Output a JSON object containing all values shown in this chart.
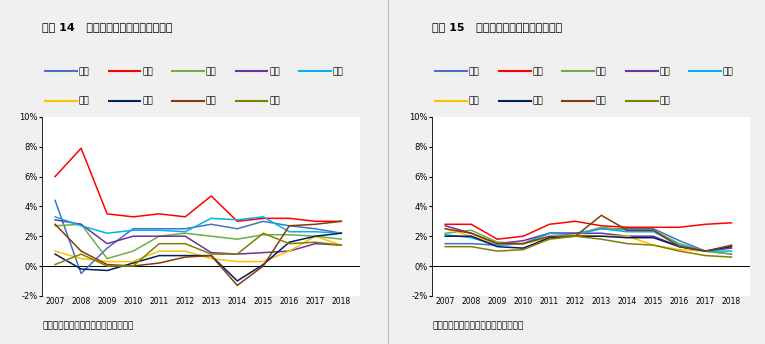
{
  "title1": "图表 14   部分上市银行零售资产利润率",
  "title2": "图表 15   部分上市银行对公资产利润率",
  "source": "资料来源：公司公告，万和证券研究所",
  "years": [
    2007,
    2008,
    2009,
    2010,
    2011,
    2012,
    2013,
    2014,
    2015,
    2016,
    2017,
    2018
  ],
  "legend_row1": [
    "农业",
    "工商",
    "中国",
    "交通",
    "建设"
  ],
  "legend_row2": [
    "中信",
    "平安",
    "招商",
    "光大"
  ],
  "chart1": {
    "农业": [
      0.044,
      -0.005,
      0.012,
      0.025,
      0.025,
      0.025,
      0.028,
      0.025,
      0.03,
      0.027,
      0.025,
      0.022
    ],
    "工商": [
      0.06,
      0.079,
      0.035,
      0.033,
      0.035,
      0.033,
      0.047,
      0.03,
      0.032,
      0.032,
      0.03,
      0.03
    ],
    "中国": [
      0.027,
      0.028,
      0.005,
      0.01,
      0.02,
      0.022,
      0.02,
      0.018,
      0.021,
      0.021,
      0.02,
      0.018
    ],
    "交通": [
      0.031,
      0.028,
      0.015,
      0.02,
      0.02,
      0.02,
      0.009,
      0.008,
      0.009,
      0.01,
      0.015,
      0.014
    ],
    "建设": [
      0.033,
      0.027,
      0.022,
      0.024,
      0.024,
      0.023,
      0.032,
      0.031,
      0.033,
      0.023,
      0.023,
      0.022
    ],
    "中信": [
      0.01,
      0.005,
      0.003,
      0.003,
      0.01,
      0.01,
      0.005,
      0.003,
      0.003,
      0.01,
      0.02,
      0.014
    ],
    "平安": [
      0.008,
      -0.002,
      -0.003,
      0.002,
      0.007,
      0.007,
      0.007,
      -0.01,
      0.001,
      0.016,
      0.02,
      0.022
    ],
    "招商": [
      0.028,
      0.01,
      0.001,
      0.0,
      0.002,
      0.006,
      0.007,
      -0.013,
      0.0,
      0.027,
      0.028,
      0.03
    ],
    "光大": [
      0.001,
      0.008,
      0.0,
      0.0,
      0.015,
      0.015,
      0.008,
      0.008,
      0.022,
      0.015,
      0.016,
      0.014
    ]
  },
  "chart2": {
    "农业": [
      0.015,
      0.015,
      0.014,
      0.015,
      0.022,
      0.022,
      0.025,
      0.025,
      0.025,
      0.017,
      0.01,
      0.008
    ],
    "工商": [
      0.028,
      0.028,
      0.018,
      0.02,
      0.028,
      0.03,
      0.027,
      0.026,
      0.026,
      0.026,
      0.028,
      0.029
    ],
    "中国": [
      0.022,
      0.024,
      0.016,
      0.015,
      0.022,
      0.021,
      0.026,
      0.024,
      0.024,
      0.015,
      0.01,
      0.008
    ],
    "交通": [
      0.027,
      0.022,
      0.015,
      0.017,
      0.022,
      0.022,
      0.022,
      0.02,
      0.02,
      0.013,
      0.01,
      0.012
    ],
    "建设": [
      0.021,
      0.019,
      0.014,
      0.015,
      0.022,
      0.021,
      0.025,
      0.023,
      0.023,
      0.014,
      0.01,
      0.01
    ],
    "中信": [
      0.025,
      0.02,
      0.015,
      0.015,
      0.019,
      0.021,
      0.02,
      0.02,
      0.014,
      0.011,
      0.01,
      0.013
    ],
    "平安": [
      0.02,
      0.02,
      0.013,
      0.012,
      0.019,
      0.02,
      0.02,
      0.019,
      0.019,
      0.013,
      0.01,
      0.013
    ],
    "招商": [
      0.025,
      0.022,
      0.015,
      0.015,
      0.02,
      0.02,
      0.034,
      0.024,
      0.024,
      0.013,
      0.01,
      0.014
    ],
    "光大": [
      0.013,
      0.013,
      0.01,
      0.011,
      0.018,
      0.02,
      0.018,
      0.015,
      0.014,
      0.01,
      0.007,
      0.006
    ]
  },
  "colors": {
    "农业": "#4472C4",
    "工商": "#FF0000",
    "中国": "#70AD47",
    "交通": "#7030A0",
    "建设": "#00B0F0",
    "中信": "#FFC000",
    "平安": "#002060",
    "招商": "#843C0C",
    "光大": "#808000"
  },
  "ylim": [
    -0.02,
    0.1
  ],
  "yticks": [
    -0.02,
    0.0,
    0.02,
    0.04,
    0.06,
    0.08,
    0.1
  ],
  "bg_color": "#FFFFFF",
  "fig_bg": "#F0F0F0",
  "panel_bg": "#F0F0F0"
}
